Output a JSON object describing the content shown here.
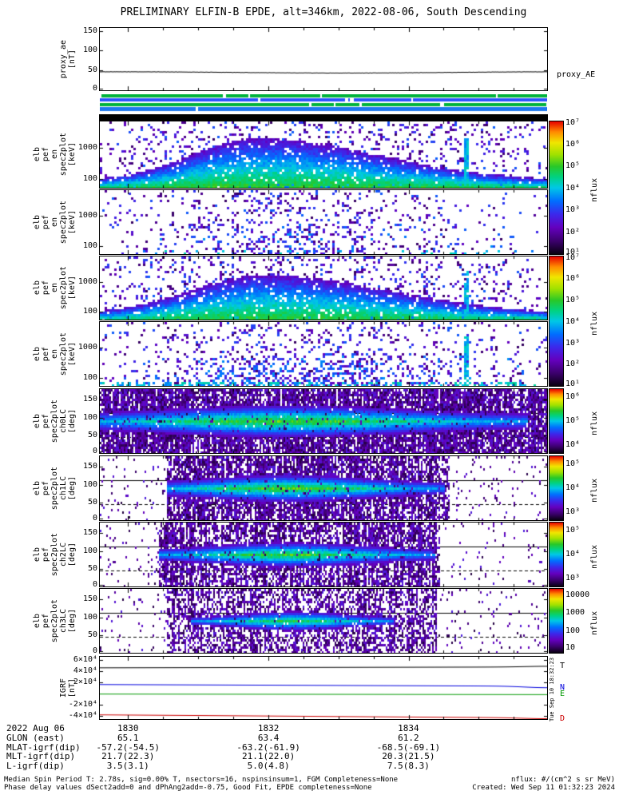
{
  "title": "PRELIMINARY ELFIN-B EPDE, alt=346km, 2022-08-06, South Descending",
  "side_timestamp": "Tue Sep 10 18:32:23 2024",
  "right_labels": {
    "proxy": "proxy_AE"
  },
  "bottom": {
    "date": "2022 Aug 06",
    "time_ticks": [
      "1830",
      "1832",
      "1834"
    ],
    "rows": [
      {
        "label": "GLON (east)",
        "values": [
          "65.1",
          "63.4",
          "61.2"
        ]
      },
      {
        "label": "MLAT-igrf(dip)",
        "values": [
          "-57.2(-54.5)",
          "-63.2(-61.9)",
          "-68.5(-69.1)"
        ]
      },
      {
        "label": "MLT-igrf(dip)",
        "values": [
          "21.7(22.3)",
          "21.1(22.0)",
          "20.3(21.5)"
        ]
      },
      {
        "label": "L-igrf(dip)",
        "values": [
          "3.5(3.1)",
          "5.0(4.8)",
          "7.5(8.3)"
        ]
      }
    ]
  },
  "footer": {
    "left": [
      "Median Spin Period T: 2.78s, sig=0.00% T, nsectors=16, nspinsinsum=1, FGM Completeness=None",
      "Phase delay values dSect2add=0 and dPhAng2add=-0.75, Good Fit, EPDE completeness=None"
    ],
    "right": [
      "nflux: #/(cm^2 s sr MeV)",
      "Created: Wed Sep 11 01:32:23 2024"
    ]
  },
  "chart_data": {
    "type": "heatmap",
    "title": "PRELIMINARY ELFIN-B EPDE, alt=346km, 2022-08-06, South Descending",
    "x_axis": {
      "labels": [
        "1830",
        "1832",
        "1834"
      ],
      "fracs": [
        0.063,
        0.377,
        0.69
      ],
      "minor_step": 0.0784
    },
    "panels": [
      {
        "id": "proxy_ae",
        "type": "line",
        "ylabel_lines": [
          "proxy_ae",
          "[nT]"
        ],
        "ylim": [
          0,
          157
        ],
        "yticks": [
          {
            "t": "150",
            "f": 0.045
          },
          {
            "t": "100",
            "f": 0.363
          },
          {
            "t": "50",
            "f": 0.682
          },
          {
            "t": "0",
            "f": 1.0
          }
        ],
        "series": [
          {
            "name": "proxy_AE",
            "color": "#000000",
            "flat": 45,
            "wiggle": 1.5,
            "noise": 0.8
          }
        ]
      },
      {
        "id": "strip",
        "type": "flagbar",
        "rows": [
          {
            "color": "#00b33c"
          },
          {
            "color": "#2952ff"
          },
          {
            "color": "#00b33c"
          },
          {
            "color": "#1e78f0"
          }
        ]
      },
      {
        "id": "bar",
        "type": "solidbar",
        "color": "#000000"
      },
      {
        "id": "espec0",
        "type": "spectrogram",
        "ylabel_lines": [
          "elb",
          "pef",
          "en",
          "spec2plot",
          "[keV]"
        ],
        "yticks": [
          {
            "t": "1000",
            "f": 0.4
          },
          {
            "t": "100",
            "f": 0.87
          }
        ],
        "render": {
          "kind": "energy",
          "seed": 101,
          "cx": 0.35,
          "sxl": 0.15,
          "sxr": 0.27,
          "base": 0.13,
          "dome": 0.63,
          "sp0": 0.03,
          "sp1": 0.17,
          "bandp": 0.93,
          "streak": 0.815,
          "lowcloud": 0
        }
      },
      {
        "id": "espec1",
        "type": "spectrogram",
        "ylabel_lines": [
          "elb",
          "pef",
          "en",
          "spec2plot",
          "[keV]"
        ],
        "yticks": [
          {
            "t": "1000",
            "f": 0.4
          },
          {
            "t": "100",
            "f": 0.87
          }
        ],
        "render": {
          "kind": "energy",
          "seed": 202,
          "cx": 0.42,
          "sxl": 0.13,
          "sxr": 0.16,
          "base": 0,
          "dome": 0,
          "sp0": 0.022,
          "sp1": 0.15,
          "bandp": 0.1,
          "streak": 0,
          "lowcloud": 0.55
        }
      },
      {
        "id": "espec2",
        "type": "spectrogram",
        "ylabel_lines": [
          "elb",
          "pef",
          "en",
          "spec2plot",
          "[keV]"
        ],
        "yticks": [
          {
            "t": "1000",
            "f": 0.4
          },
          {
            "t": "100",
            "f": 0.87
          }
        ],
        "render": {
          "kind": "energy",
          "seed": 303,
          "cx": 0.36,
          "sxl": 0.16,
          "sxr": 0.28,
          "base": 0.13,
          "dome": 0.6,
          "sp0": 0.03,
          "sp1": 0.17,
          "bandp": 0.95,
          "streak": 0.815,
          "lowcloud": 0
        }
      },
      {
        "id": "espec3",
        "type": "spectrogram",
        "ylabel_lines": [
          "elb",
          "pef",
          "en",
          "spec2plot",
          "[keV]"
        ],
        "yticks": [
          {
            "t": "1000",
            "f": 0.4
          },
          {
            "t": "100",
            "f": 0.87
          }
        ],
        "render": {
          "kind": "energy",
          "seed": 404,
          "cx": 0.42,
          "sxl": 0.15,
          "sxr": 0.2,
          "base": 0,
          "dome": 0,
          "sp0": 0.025,
          "sp1": 0.16,
          "bandp": 0.45,
          "streak": 0.815,
          "lowcloud": 0.85
        }
      },
      {
        "id": "ch0",
        "type": "spectrogram",
        "ylabel_lines": [
          "elb",
          "pef",
          "spec2plot",
          "ch0LC",
          "[deg]"
        ],
        "yticks": [
          {
            "t": "150",
            "f": 0.167
          },
          {
            "t": "100",
            "f": 0.444
          },
          {
            "t": "50",
            "f": 0.722
          },
          {
            "t": "0",
            "f": 1.0
          }
        ],
        "render": {
          "kind": "pitch",
          "seed": 505,
          "x0": 0.0,
          "x1": 1.0,
          "dens": 0.92,
          "scat": 0.0,
          "bcx": 0.42,
          "bsx": 0.26,
          "bw0": 0.1,
          "bw1": 0.15,
          "bvmax": 0.28
        }
      },
      {
        "id": "ch1",
        "type": "spectrogram",
        "ylabel_lines": [
          "elb",
          "pef",
          "spec2plot",
          "ch1LC",
          "[deg]"
        ],
        "yticks": [
          {
            "t": "150",
            "f": 0.167
          },
          {
            "t": "100",
            "f": 0.444
          },
          {
            "t": "50",
            "f": 0.722
          },
          {
            "t": "0",
            "f": 1.0
          }
        ],
        "render": {
          "kind": "pitch",
          "seed": 606,
          "x0": 0.15,
          "x1": 0.78,
          "dens": 0.75,
          "scat": 0.1,
          "bcx": 0.42,
          "bsx": 0.17,
          "bw0": 0.08,
          "bw1": 0.13,
          "bvmax": 0.28
        }
      },
      {
        "id": "ch2",
        "type": "spectrogram",
        "ylabel_lines": [
          "elb",
          "pef",
          "spec2plot",
          "ch2LC",
          "[deg]"
        ],
        "yticks": [
          {
            "t": "150",
            "f": 0.167
          },
          {
            "t": "100",
            "f": 0.444
          },
          {
            "t": "50",
            "f": 0.722
          },
          {
            "t": "0",
            "f": 1.0
          }
        ],
        "render": {
          "kind": "pitch",
          "seed": 707,
          "x0": 0.13,
          "x1": 0.76,
          "dens": 0.68,
          "scat": 0.09,
          "bcx": 0.42,
          "bsx": 0.16,
          "bw0": 0.07,
          "bw1": 0.12,
          "bvmax": 0.26
        }
      },
      {
        "id": "ch3",
        "type": "spectrogram",
        "ylabel_lines": [
          "elb",
          "pef",
          "spec2plot",
          "ch3LC",
          "[deg]"
        ],
        "yticks": [
          {
            "t": "150",
            "f": 0.167
          },
          {
            "t": "100",
            "f": 0.444
          },
          {
            "t": "50",
            "f": 0.722
          },
          {
            "t": "0",
            "f": 1.0
          }
        ],
        "render": {
          "kind": "pitch",
          "seed": 808,
          "x0": 0.15,
          "x1": 0.75,
          "dens": 0.55,
          "scat": 0.08,
          "bcx": 0.43,
          "bsx": 0.11,
          "bw0": 0.05,
          "bw1": 0.1,
          "bvmax": 0.22
        }
      },
      {
        "id": "igrf",
        "type": "line",
        "ylabel_lines": [
          "IGRF",
          "[nT]"
        ],
        "ylim": [
          -45000,
          65000
        ],
        "yticks": [
          {
            "t": "6×10⁴",
            "f": 0.045
          },
          {
            "t": "4×10⁴",
            "f": 0.227
          },
          {
            "t": "2×10⁴",
            "f": 0.409
          },
          {
            "t": "-2×10⁴",
            "f": 0.773
          },
          {
            "t": "-4×10⁴",
            "f": 0.955
          }
        ],
        "series": [
          {
            "name": "T",
            "color": "#000000",
            "start": 45500,
            "end": 47000,
            "dip": 1200
          },
          {
            "name": "N",
            "color": "#0000dd",
            "start": 16000,
            "end": 13000,
            "dip": -2600
          },
          {
            "name": "E",
            "color": "#009900",
            "start": -800,
            "end": -1800,
            "dip": 0
          },
          {
            "name": "D",
            "color": "#cc0000",
            "start": -37500,
            "end": -43000,
            "dip": -1500
          }
        ]
      }
    ],
    "colorbars": [
      {
        "label": "nflux",
        "ticks": [
          {
            "t": "10⁷",
            "f": 0.01
          },
          {
            "t": "10⁶",
            "f": 0.175
          },
          {
            "t": "10⁵",
            "f": 0.34
          },
          {
            "t": "10⁴",
            "f": 0.505
          },
          {
            "t": "10³",
            "f": 0.67
          },
          {
            "t": "10²",
            "f": 0.835
          },
          {
            "t": "10¹",
            "f": 0.99
          }
        ]
      },
      {
        "label": "nflux",
        "ticks": [
          {
            "t": "10⁷",
            "f": 0.01
          },
          {
            "t": "10⁶",
            "f": 0.175
          },
          {
            "t": "10⁵",
            "f": 0.34
          },
          {
            "t": "10⁴",
            "f": 0.505
          },
          {
            "t": "10³",
            "f": 0.67
          },
          {
            "t": "10²",
            "f": 0.835
          },
          {
            "t": "10¹",
            "f": 0.99
          }
        ]
      },
      {
        "label": "nflux",
        "ticks": [
          {
            "t": "10⁶",
            "f": 0.12
          },
          {
            "t": "10⁵",
            "f": 0.5
          },
          {
            "t": "10⁴",
            "f": 0.88
          }
        ]
      },
      {
        "label": "nflux",
        "ticks": [
          {
            "t": "10⁵",
            "f": 0.12
          },
          {
            "t": "10⁴",
            "f": 0.5
          },
          {
            "t": "10³",
            "f": 0.88
          }
        ]
      },
      {
        "label": "nflux",
        "ticks": [
          {
            "t": "10⁵",
            "f": 0.12
          },
          {
            "t": "10⁴",
            "f": 0.5
          },
          {
            "t": "10³",
            "f": 0.88
          }
        ]
      },
      {
        "label": "nflux",
        "ticks": [
          {
            "t": "10000",
            "f": 0.1
          },
          {
            "t": "1000",
            "f": 0.38
          },
          {
            "t": "100",
            "f": 0.66
          },
          {
            "t": "10",
            "f": 0.92
          }
        ]
      }
    ]
  }
}
